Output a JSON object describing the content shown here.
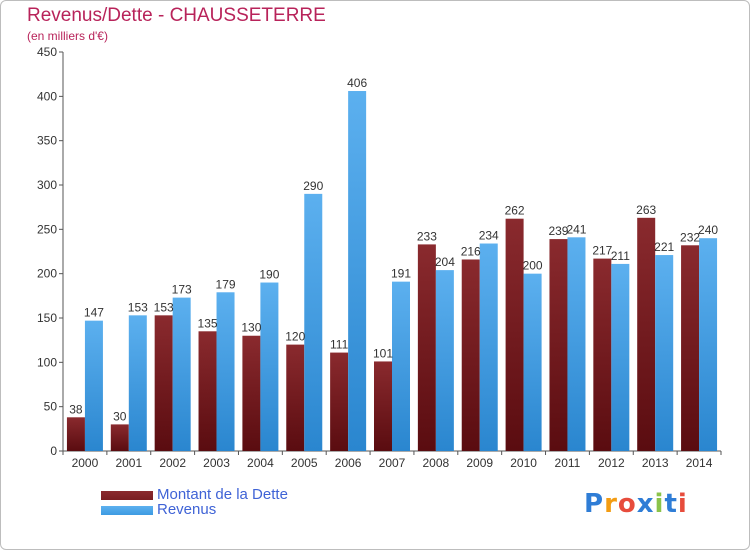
{
  "header": {
    "title": "Revenus/Dette - CHAUSSETERRE",
    "subtitle": "(en milliers d'€)"
  },
  "legend": {
    "items": [
      {
        "label": "Montant de la Dette",
        "color": "#7a1e22"
      },
      {
        "label": "Revenus",
        "color": "#3d9be2"
      }
    ]
  },
  "logo": {
    "text": "Proxiti",
    "letters": [
      {
        "ch": "P",
        "color": "#2f7dd6"
      },
      {
        "ch": "r",
        "color": "#f39c12"
      },
      {
        "ch": "o",
        "color": "#e74c3c"
      },
      {
        "ch": "x",
        "color": "#2f7dd6"
      },
      {
        "ch": "i",
        "color": "#8bc34a"
      },
      {
        "ch": "t",
        "color": "#2f7dd6"
      },
      {
        "ch": "i",
        "color": "#e74c3c"
      }
    ]
  },
  "chart_data": {
    "type": "bar",
    "title": "Revenus/Dette - CHAUSSETERRE",
    "ylabel": "(en milliers d'€)",
    "xlabel": "",
    "ylim": [
      0,
      450
    ],
    "yticks": [
      0,
      50,
      100,
      150,
      200,
      250,
      300,
      350,
      400,
      450
    ],
    "grid": false,
    "legend_position": "bottom-left",
    "categories": [
      "2000",
      "2001",
      "2002",
      "2003",
      "2004",
      "2005",
      "2006",
      "2007",
      "2008",
      "2009",
      "2010",
      "2011",
      "2012",
      "2013",
      "2014"
    ],
    "series": [
      {
        "name": "Montant de la Dette",
        "color": "#7a1e22",
        "values": [
          38,
          30,
          153,
          135,
          130,
          120,
          111,
          101,
          233,
          216,
          262,
          239,
          217,
          263,
          232
        ]
      },
      {
        "name": "Revenus",
        "color": "#3d9be2",
        "values": [
          147,
          153,
          173,
          179,
          190,
          290,
          406,
          191,
          204,
          234,
          200,
          241,
          211,
          221,
          240
        ]
      }
    ]
  }
}
